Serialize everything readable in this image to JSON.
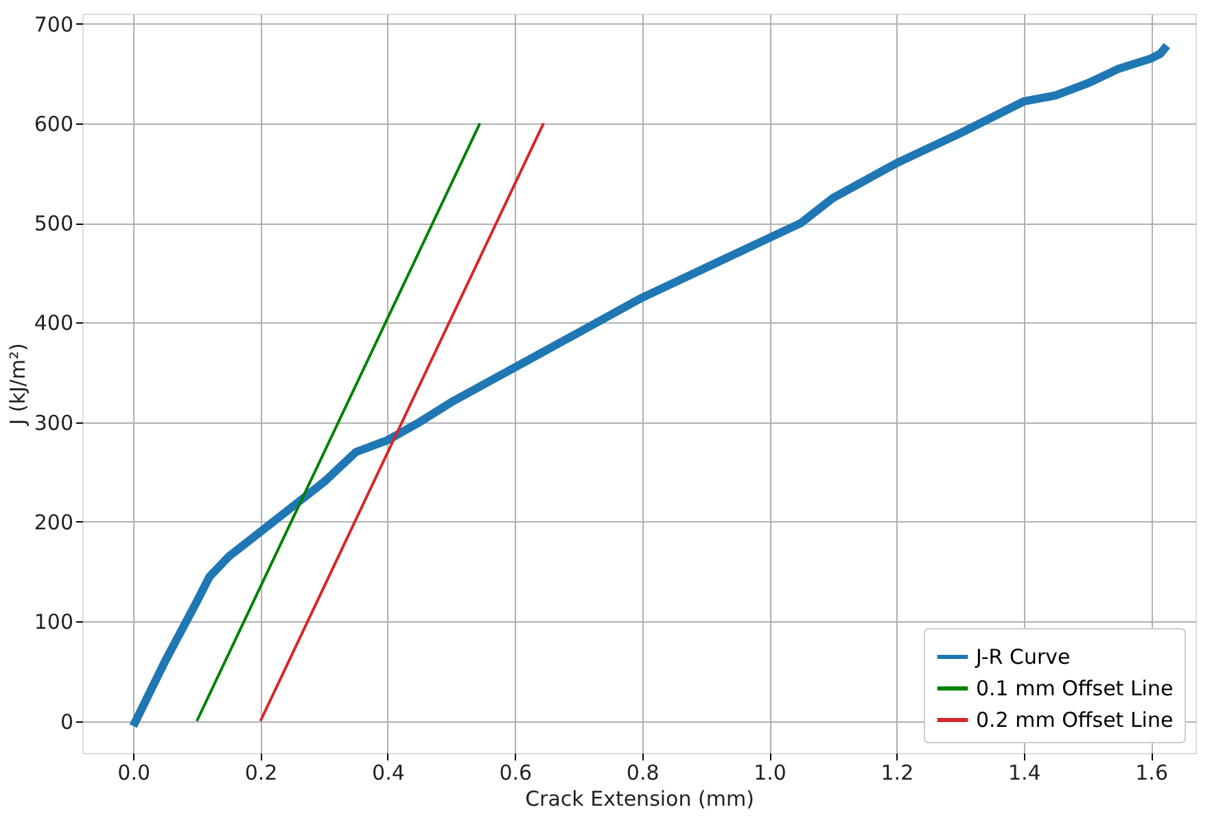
{
  "chart_data": {
    "type": "line",
    "xlabel": "Crack Extension (mm)",
    "ylabel": "J (kJ/m²)",
    "xlim": [
      -0.08,
      1.67
    ],
    "ylim": [
      -32,
      710
    ],
    "xticks": [
      {
        "value": 0,
        "label": "0.0"
      },
      0.2,
      0.4,
      0.6,
      0.8,
      {
        "value": 1,
        "label": "1.0"
      },
      1.2,
      1.4,
      1.6
    ],
    "yticks": [
      0,
      100,
      200,
      300,
      400,
      500,
      600,
      700
    ],
    "grid": true,
    "legend": "bottom right",
    "line_style": "solid",
    "marker": "none",
    "series": [
      {
        "name": "J-R Curve",
        "color": "#1f77b4",
        "x": [
          0,
          0.05,
          0.1,
          0.12,
          0.15,
          0.2,
          0.22,
          0.25,
          0.3,
          0.35,
          0.4,
          0.45,
          0.5,
          0.6,
          0.7,
          0.8,
          0.9,
          1.0,
          1.05,
          1.1,
          1.2,
          1.3,
          1.4,
          1.45,
          1.5,
          1.55,
          1.6,
          1.615,
          1.625
        ],
        "values": [
          -5,
          60,
          120,
          145,
          165,
          190,
          200,
          215,
          240,
          270,
          282,
          300,
          320,
          355,
          390,
          425,
          455,
          485,
          500,
          525,
          560,
          590,
          622,
          628,
          640,
          655,
          665,
          670,
          678
        ]
      },
      {
        "name": "0.1 mm Offset Line",
        "color": "#008000",
        "x": [
          0.1,
          0.545
        ],
        "values": [
          0,
          600
        ]
      },
      {
        "name": "0.2 mm Offset Line",
        "color": "#d62728",
        "x": [
          0.2,
          0.645
        ],
        "values": [
          0,
          600
        ]
      }
    ]
  }
}
